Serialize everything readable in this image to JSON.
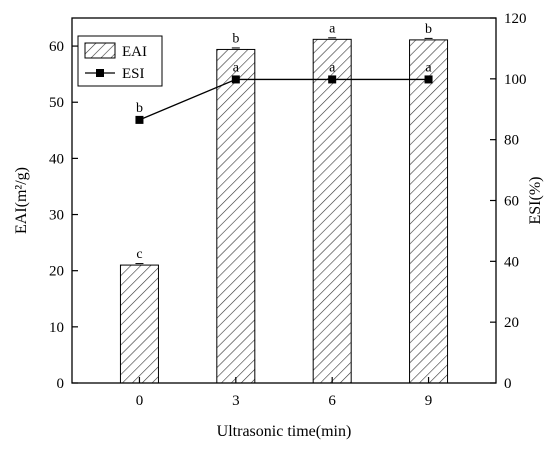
{
  "chart_data": {
    "type": "bar",
    "x_title": "Ultrasonic time(min)",
    "y_left_title": "EAI(m²/g)",
    "y_right_title": "ESI(%)",
    "categories": [
      "0",
      "3",
      "6",
      "9"
    ],
    "y_left_range": [
      0,
      65
    ],
    "y_left_ticks": [
      "0",
      "10",
      "20",
      "30",
      "40",
      "50",
      "60"
    ],
    "y_right_range": [
      0,
      120
    ],
    "y_right_ticks": [
      "0",
      "20",
      "40",
      "60",
      "80",
      "100",
      "120"
    ],
    "series": [
      {
        "name": "EAI",
        "kind": "bar",
        "axis": "left",
        "pattern": "diagonal-hatch",
        "values": [
          21.0,
          59.4,
          61.2,
          61.1
        ],
        "labels": [
          "c",
          "b",
          "a",
          "b"
        ]
      },
      {
        "name": "ESI",
        "kind": "line",
        "axis": "right",
        "marker": "square",
        "values": [
          86.5,
          99.8,
          99.8,
          99.8
        ],
        "labels": [
          "b",
          "a",
          "a",
          "a"
        ]
      }
    ],
    "legend_position": "top-left",
    "grid": false
  }
}
